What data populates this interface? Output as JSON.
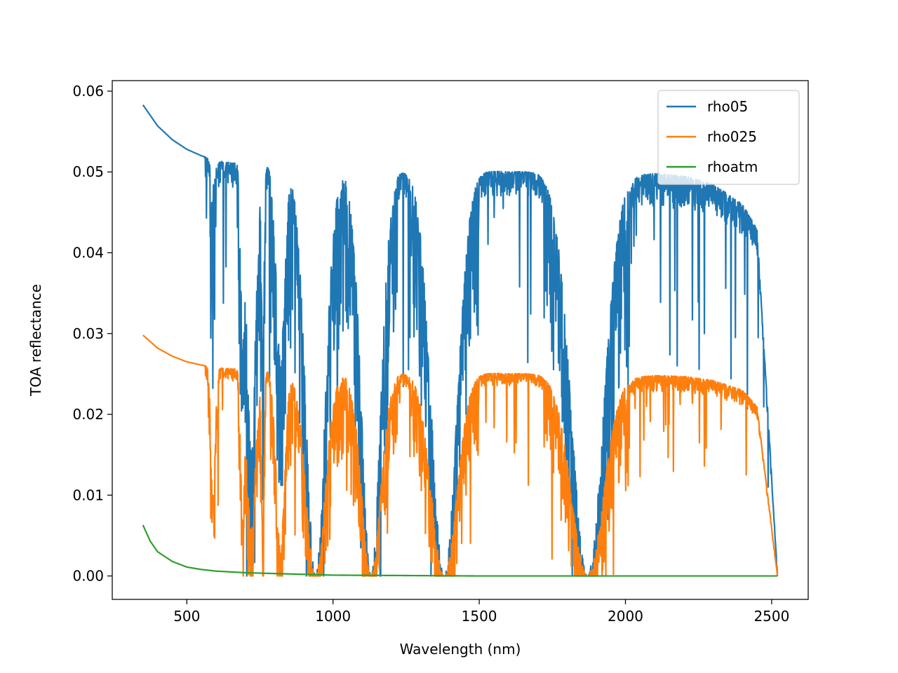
{
  "chart_data": {
    "type": "line",
    "title": "",
    "xlabel": "Wavelength (nm)",
    "ylabel": "TOA reflectance",
    "xlim": [
      245,
      2625
    ],
    "ylim": [
      -0.0029,
      0.0613
    ],
    "xticks": [
      500,
      1000,
      1500,
      2000,
      2500
    ],
    "xtick_labels": [
      "500",
      "1000",
      "1500",
      "2000",
      "2500"
    ],
    "yticks": [
      0.0,
      0.01,
      0.02,
      0.03,
      0.04,
      0.05,
      0.06
    ],
    "ytick_labels": [
      "0.00",
      "0.01",
      "0.02",
      "0.03",
      "0.04",
      "0.05",
      "0.06"
    ],
    "grid": false,
    "legend_position": "top-right",
    "x_range": [
      350,
      2520
    ],
    "series": [
      {
        "name": "rho05",
        "color": "#1f77b4",
        "continuum": [
          [
            350,
            0.0583
          ],
          [
            400,
            0.0557
          ],
          [
            450,
            0.054
          ],
          [
            500,
            0.0528
          ],
          [
            550,
            0.052
          ],
          [
            600,
            0.0514
          ],
          [
            700,
            0.0509
          ],
          [
            800,
            0.0507
          ],
          [
            900,
            0.0505
          ],
          [
            1000,
            0.0503
          ],
          [
            1200,
            0.0502
          ],
          [
            1500,
            0.0501
          ],
          [
            1700,
            0.05
          ],
          [
            1800,
            0.049
          ],
          [
            1950,
            0.0495
          ],
          [
            2100,
            0.0498
          ],
          [
            2200,
            0.0495
          ],
          [
            2300,
            0.0485
          ],
          [
            2400,
            0.046
          ],
          [
            2450,
            0.043
          ],
          [
            2520,
            0.0
          ]
        ],
        "absorption_bands": [
          {
            "center": 590,
            "width": 10,
            "min": 0.047
          },
          {
            "center": 690,
            "width": 8,
            "min": 0.031
          },
          {
            "center": 720,
            "width": 20,
            "min": 0.015
          },
          {
            "center": 760,
            "width": 6,
            "min": 0.027
          },
          {
            "center": 820,
            "width": 20,
            "min": 0.027
          },
          {
            "center": 940,
            "width": 45,
            "min": 0.0
          },
          {
            "center": 1130,
            "width": 45,
            "min": 0.0
          },
          {
            "center": 1380,
            "width": 60,
            "min": 0.0
          },
          {
            "center": 1870,
            "width": 75,
            "min": 0.0
          }
        ]
      },
      {
        "name": "rho025",
        "color": "#ff7f0e",
        "continuum": [
          [
            350,
            0.0298
          ],
          [
            400,
            0.0282
          ],
          [
            450,
            0.0272
          ],
          [
            500,
            0.0265
          ],
          [
            550,
            0.0261
          ],
          [
            600,
            0.0258
          ],
          [
            700,
            0.0255
          ],
          [
            800,
            0.0254
          ],
          [
            900,
            0.0253
          ],
          [
            1000,
            0.0252
          ],
          [
            1200,
            0.0251
          ],
          [
            1500,
            0.0251
          ],
          [
            1700,
            0.025
          ],
          [
            1800,
            0.0245
          ],
          [
            1950,
            0.0245
          ],
          [
            2100,
            0.0248
          ],
          [
            2200,
            0.0247
          ],
          [
            2300,
            0.0242
          ],
          [
            2400,
            0.023
          ],
          [
            2450,
            0.021
          ],
          [
            2520,
            0.0
          ]
        ],
        "absorption_bands": [
          {
            "center": 590,
            "width": 10,
            "min": 0.019
          },
          {
            "center": 690,
            "width": 8,
            "min": 0.016
          },
          {
            "center": 720,
            "width": 20,
            "min": 0.011
          },
          {
            "center": 760,
            "width": 6,
            "min": 0.009
          },
          {
            "center": 820,
            "width": 20,
            "min": 0.007
          },
          {
            "center": 940,
            "width": 45,
            "min": 0.0
          },
          {
            "center": 1130,
            "width": 45,
            "min": 0.0
          },
          {
            "center": 1380,
            "width": 60,
            "min": 0.0
          },
          {
            "center": 1870,
            "width": 75,
            "min": 0.0
          }
        ]
      },
      {
        "name": "rhoatm",
        "color": "#2ca02c",
        "continuum": [
          [
            350,
            0.0063
          ],
          [
            375,
            0.0043
          ],
          [
            400,
            0.003
          ],
          [
            450,
            0.0018
          ],
          [
            500,
            0.0011
          ],
          [
            550,
            0.0008
          ],
          [
            600,
            0.0006
          ],
          [
            700,
            0.0004
          ],
          [
            800,
            0.0003
          ],
          [
            1000,
            0.0001
          ],
          [
            1500,
            0.0
          ],
          [
            2000,
            0.0
          ],
          [
            2520,
            0.0
          ]
        ],
        "absorption_bands": []
      }
    ]
  }
}
